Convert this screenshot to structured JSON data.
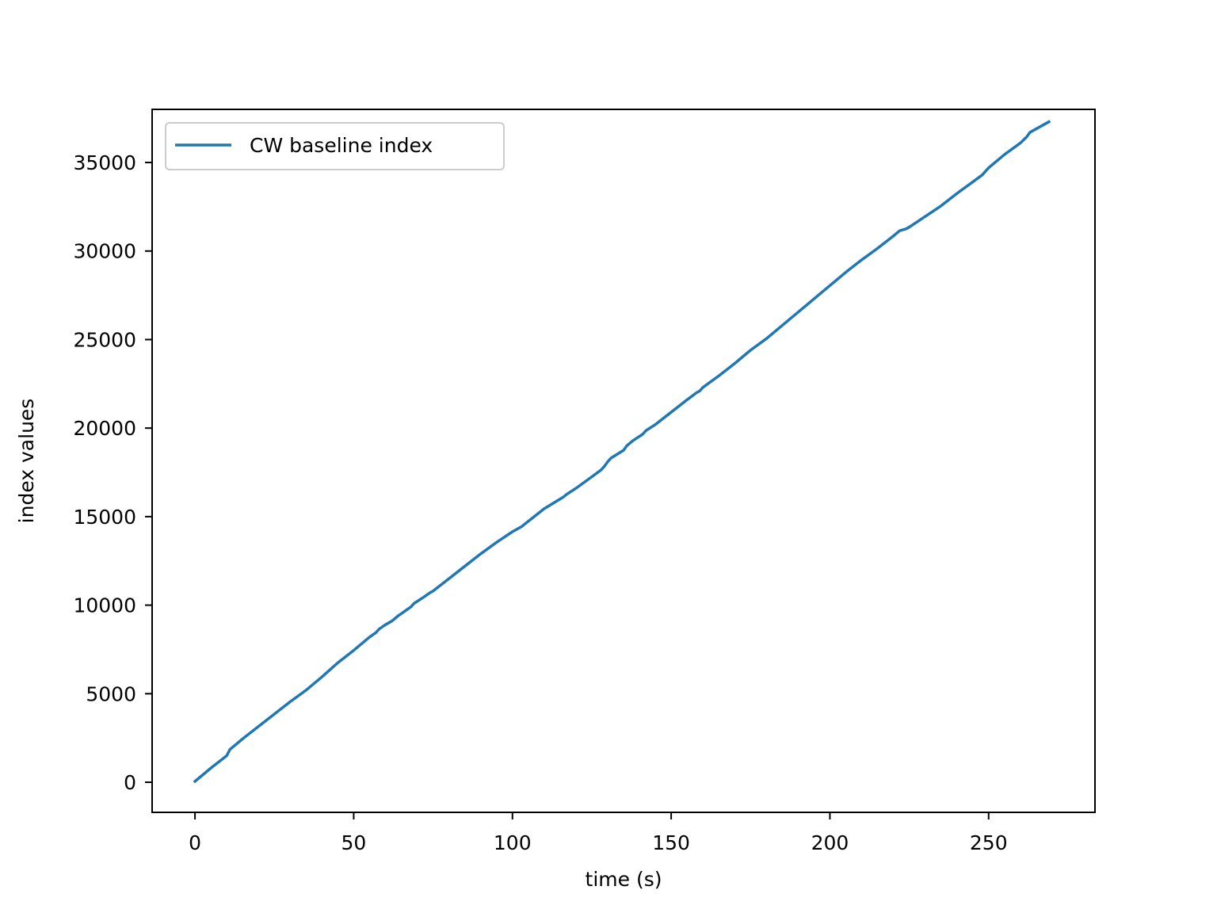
{
  "chart_data": {
    "type": "line",
    "title": "",
    "xlabel": "time (s)",
    "ylabel": "index values",
    "xlim": [
      -13.5,
      283.5
    ],
    "ylim": [
      -1700,
      38000
    ],
    "xticks": [
      0,
      50,
      100,
      150,
      200,
      250
    ],
    "yticks": [
      0,
      5000,
      10000,
      15000,
      20000,
      25000,
      30000,
      35000
    ],
    "grid": false,
    "legend_position": "upper left",
    "series": [
      {
        "name": "CW baseline index",
        "color": "#1f77b4",
        "x": [
          0,
          5,
          10,
          11,
          15,
          20,
          25,
          30,
          35,
          40,
          45,
          50,
          55,
          57,
          58,
          60,
          62,
          63,
          64,
          68,
          69,
          72,
          74,
          75,
          80,
          85,
          90,
          95,
          100,
          103,
          104,
          110,
          116,
          117,
          120,
          125,
          128,
          129,
          130,
          131,
          135,
          136,
          138,
          141,
          142,
          145,
          150,
          155,
          158,
          159,
          160,
          165,
          170,
          175,
          180,
          185,
          190,
          195,
          200,
          205,
          210,
          215,
          220,
          222,
          224,
          225,
          230,
          235,
          240,
          245,
          248,
          249,
          250,
          252,
          253,
          255,
          260,
          262,
          263,
          265,
          269
        ],
        "values": [
          50,
          800,
          1500,
          1850,
          2450,
          3150,
          3850,
          4550,
          5200,
          5950,
          6750,
          7450,
          8200,
          8450,
          8650,
          8900,
          9100,
          9250,
          9400,
          9900,
          10100,
          10450,
          10700,
          10800,
          11500,
          12200,
          12900,
          13550,
          14150,
          14450,
          14600,
          15450,
          16100,
          16250,
          16600,
          17250,
          17650,
          17850,
          18100,
          18300,
          18750,
          19000,
          19300,
          19650,
          19850,
          20200,
          20900,
          21600,
          22000,
          22100,
          22300,
          22950,
          23650,
          24400,
          25050,
          25800,
          26550,
          27300,
          28050,
          28800,
          29500,
          30150,
          30850,
          31150,
          31250,
          31350,
          31950,
          32550,
          33250,
          33900,
          34300,
          34500,
          34700,
          35000,
          35150,
          35450,
          36100,
          36450,
          36700,
          36900,
          37300
        ]
      }
    ]
  }
}
